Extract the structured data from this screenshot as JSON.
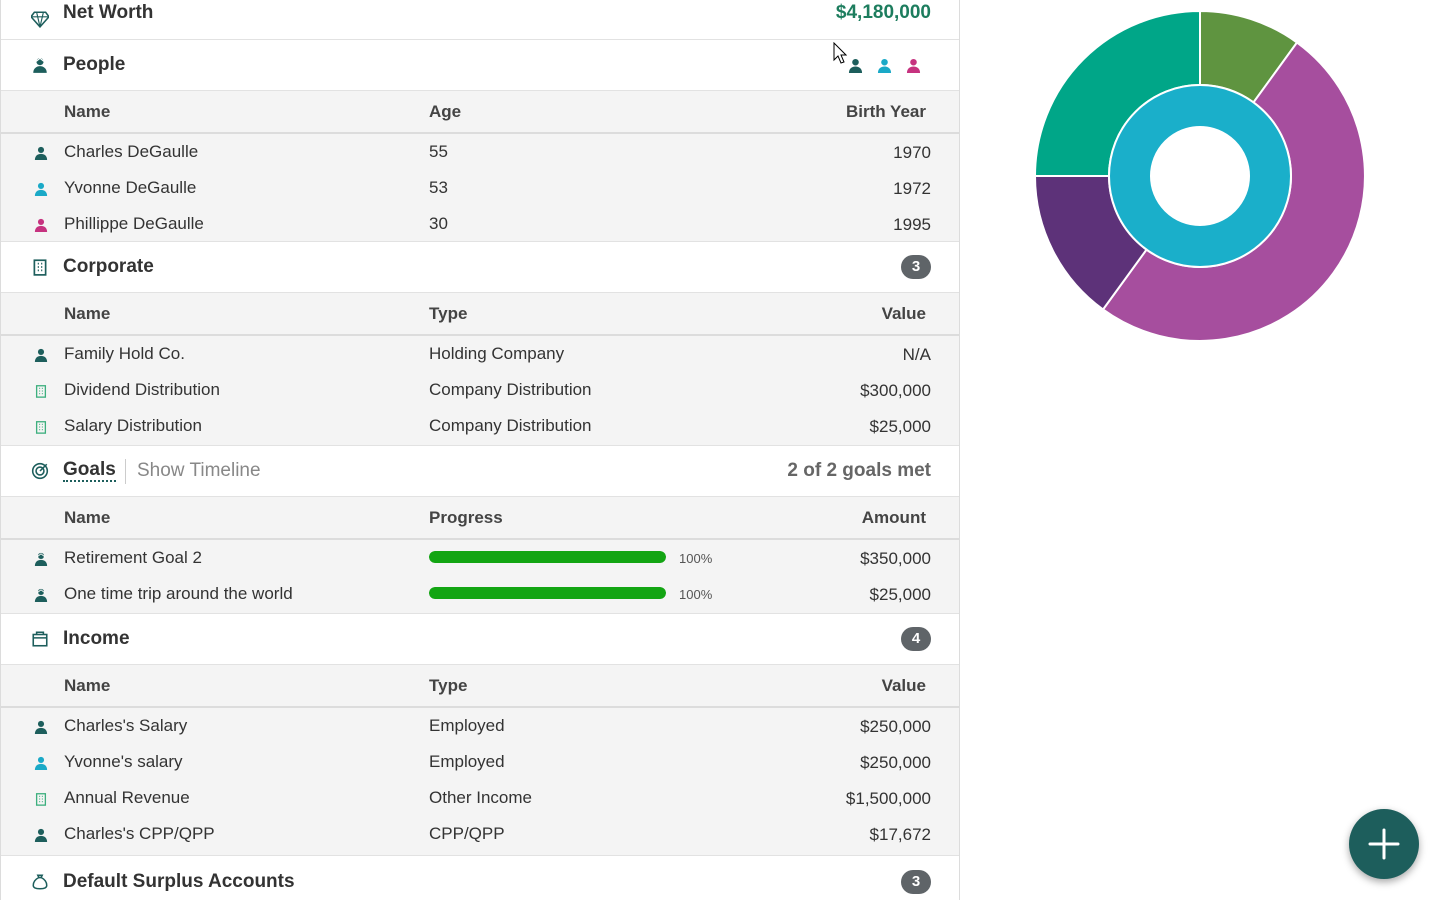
{
  "colors": {
    "charles": "#1d5e5c",
    "yvonne": "#1aa9c7",
    "phillippe": "#c6327f",
    "corporate": "#3daf7e",
    "progress": "#13a513",
    "badge": "#5f6468",
    "fab": "#1d5e5c"
  },
  "net_worth": {
    "label": "Net Worth",
    "value": "$4,180,000",
    "icon": "diamond-icon"
  },
  "people": {
    "title": "People",
    "icon": "people-icon",
    "columns": [
      "Name",
      "Age",
      "Birth Year"
    ],
    "rows": [
      {
        "name": "Charles DeGaulle",
        "age": "55",
        "year": "1970",
        "icon": "person-icon"
      },
      {
        "name": "Yvonne DeGaulle",
        "age": "53",
        "year": "1972",
        "icon": "person-icon"
      },
      {
        "name": "Phillippe DeGaulle",
        "age": "30",
        "year": "1995",
        "icon": "person-icon"
      }
    ]
  },
  "corporate": {
    "title": "Corporate",
    "count": "3",
    "icon": "building-icon",
    "columns": [
      "Name",
      "Type",
      "Value"
    ],
    "rows": [
      {
        "name": "Family Hold Co.",
        "type": "Holding Company",
        "value": "N/A",
        "icon": "person-icon"
      },
      {
        "name": "Dividend Distribution",
        "type": "Company Distribution",
        "value": "$300,000",
        "icon": "building-icon"
      },
      {
        "name": "Salary Distribution",
        "type": "Company Distribution",
        "value": "$25,000",
        "icon": "building-icon"
      }
    ]
  },
  "goals": {
    "title": "Goals",
    "show_timeline": "Show Timeline",
    "summary": "2 of 2 goals met",
    "icon": "target-icon",
    "columns": [
      "Name",
      "Progress",
      "Amount"
    ],
    "rows": [
      {
        "name": "Retirement Goal 2",
        "progress": 100,
        "pct": "100%",
        "amount": "$350,000"
      },
      {
        "name": "One time trip around the world",
        "progress": 100,
        "pct": "100%",
        "amount": "$25,000"
      }
    ]
  },
  "income": {
    "title": "Income",
    "count": "4",
    "icon": "wallet-icon",
    "columns": [
      "Name",
      "Type",
      "Value"
    ],
    "rows": [
      {
        "name": "Charles's Salary",
        "type": "Employed",
        "value": "$250,000",
        "icon": "person-icon"
      },
      {
        "name": "Yvonne's salary",
        "type": "Employed",
        "value": "$250,000",
        "icon": "person-icon"
      },
      {
        "name": "Annual Revenue",
        "type": "Other Income",
        "value": "$1,500,000",
        "icon": "building-icon"
      },
      {
        "name": "Charles's CPP/QPP",
        "type": "CPP/QPP",
        "value": "$17,672",
        "icon": "person-icon"
      }
    ]
  },
  "surplus": {
    "title": "Default Surplus Accounts",
    "count": "3",
    "icon": "money-bag-icon"
  },
  "donut_chart": {
    "outer_ring": [
      {
        "color": "#5f9440",
        "value": 10
      },
      {
        "color": "#a64e9e",
        "value": 50
      },
      {
        "color": "#5d3279",
        "value": 15
      },
      {
        "color": "#00a688",
        "value": 25
      }
    ],
    "inner_ring": [
      {
        "color": "#1aafca",
        "value": 100
      }
    ]
  },
  "fab": {
    "icon": "plus-icon"
  }
}
